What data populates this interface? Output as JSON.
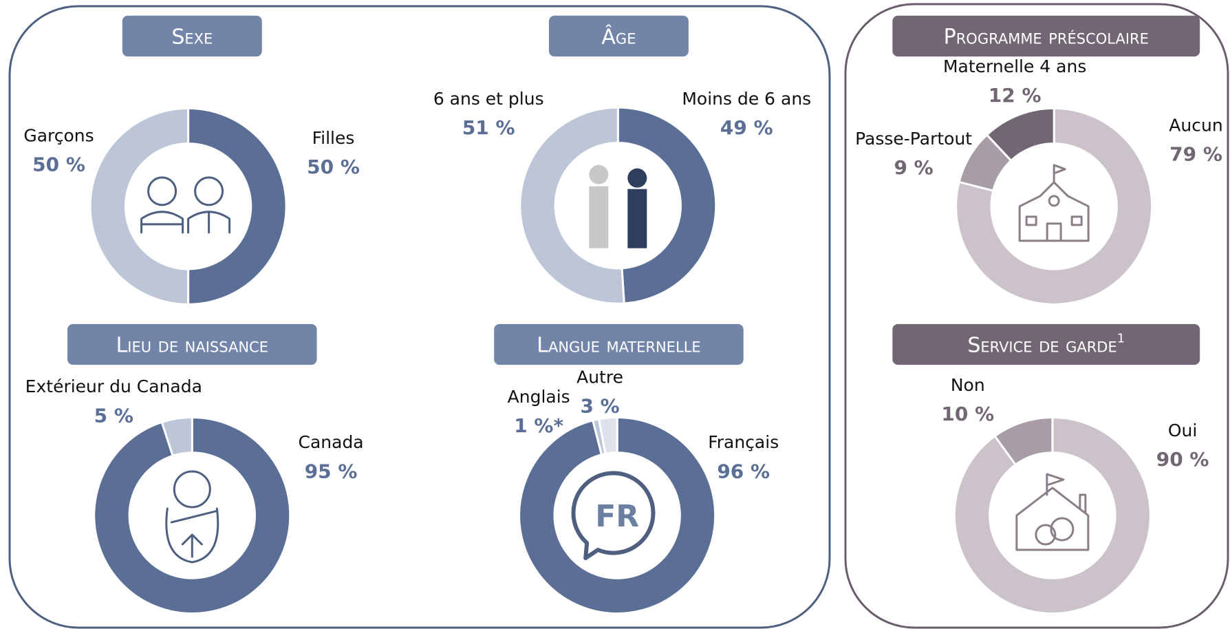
{
  "chart_data": [
    {
      "type": "pie",
      "title": "Sexe",
      "categories": [
        "Filles",
        "Garçons"
      ],
      "values": [
        50,
        50
      ],
      "value_labels": [
        "50 %",
        "50 %"
      ],
      "colors": [
        "#5b6f96",
        "#bcc6d8"
      ],
      "label_color": "#5b6f96"
    },
    {
      "type": "pie",
      "title": "Âge",
      "categories": [
        "Moins de 6 ans",
        "6 ans et plus"
      ],
      "values": [
        49,
        51
      ],
      "value_labels": [
        "49 %",
        "51 %"
      ],
      "colors": [
        "#5b6f96",
        "#bcc6d8"
      ],
      "label_color": "#5b6f96"
    },
    {
      "type": "pie",
      "title": "Lieu de naissance",
      "categories": [
        "Canada",
        "Extérieur du Canada"
      ],
      "values": [
        95,
        5
      ],
      "value_labels": [
        "95 %",
        "5 %"
      ],
      "colors": [
        "#5b6f96",
        "#bcc6d8"
      ],
      "label_color": "#5b6f96"
    },
    {
      "type": "pie",
      "title": "Langue maternelle",
      "icon_text": "FR",
      "categories": [
        "Français",
        "Anglais",
        "Autre"
      ],
      "values": [
        96,
        1,
        3
      ],
      "value_labels": [
        "96 %",
        "1 %*",
        "3 %"
      ],
      "colors": [
        "#5b6f96",
        "#bcc6d8",
        "#dde2ec"
      ],
      "label_color": "#5b6f96"
    },
    {
      "type": "pie",
      "title": "Programme préscolaire",
      "categories": [
        "Aucun",
        "Passe-Partout",
        "Maternelle 4 ans"
      ],
      "values": [
        79,
        9,
        12
      ],
      "value_labels": [
        "79 %",
        "9 %",
        "12 %"
      ],
      "colors": [
        "#cbc3c9",
        "#a89ca6",
        "#736674"
      ],
      "label_color": "#736674"
    },
    {
      "type": "pie",
      "title": "Service de garde",
      "title_note": "1",
      "categories": [
        "Oui",
        "Non"
      ],
      "values": [
        90,
        10
      ],
      "value_labels": [
        "90 %",
        "10 %"
      ],
      "colors": [
        "#cbc3c9",
        "#a89ca6"
      ],
      "label_color": "#736674"
    }
  ]
}
